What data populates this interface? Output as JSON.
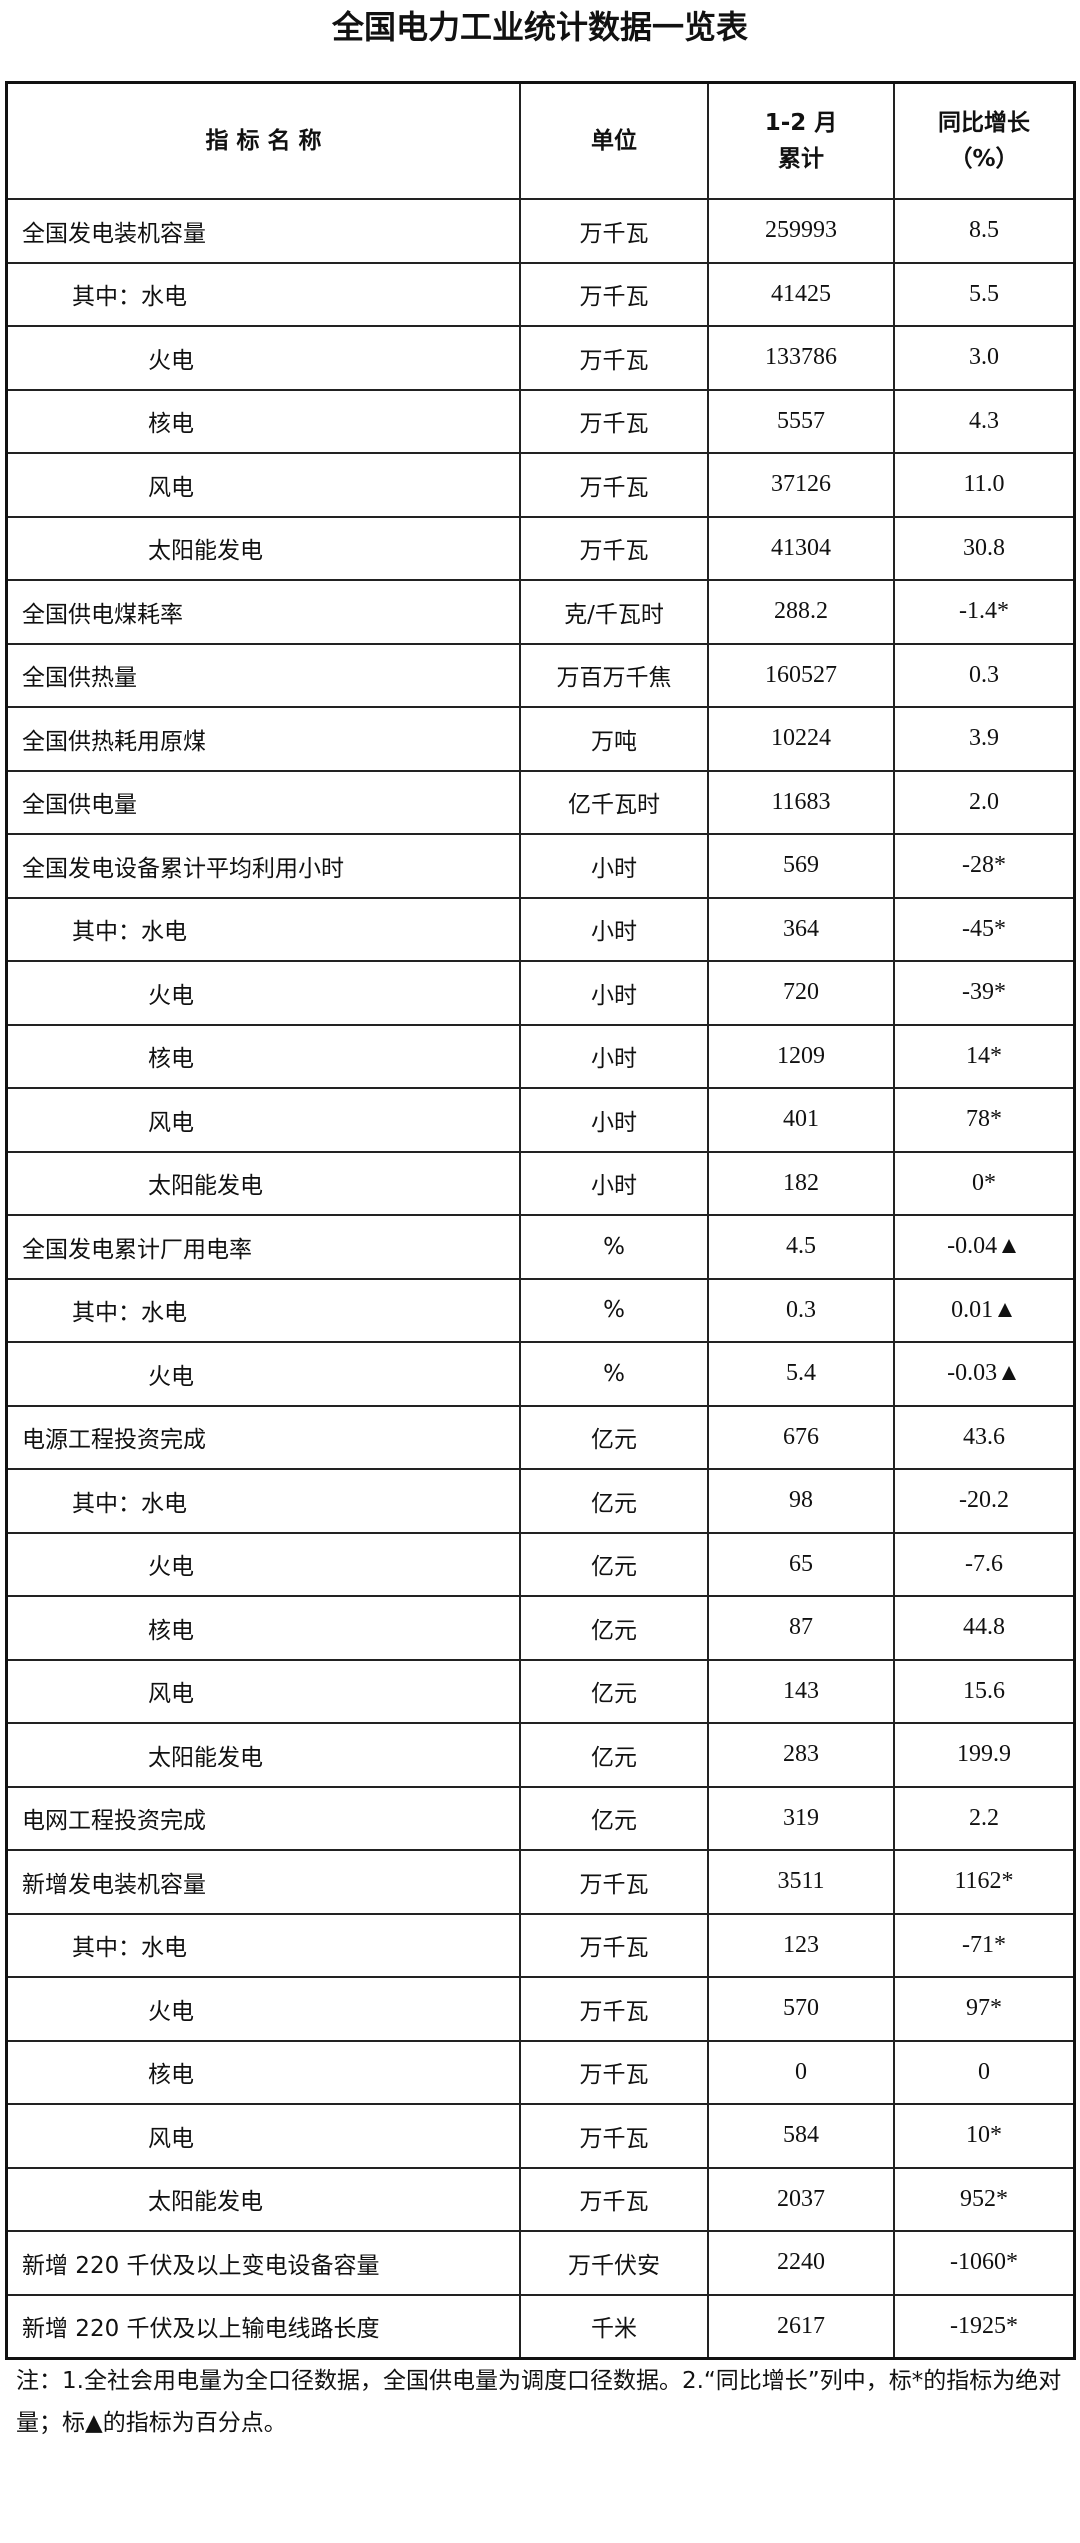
{
  "title": "全国电力工业统计数据一览表",
  "headers": {
    "name": "指 标 名 称",
    "unit": "单位",
    "value_line1": "1-2 月",
    "value_line2": "累计",
    "growth_line1": "同比增长",
    "growth_line2": "（%）"
  },
  "rows": [
    {
      "name": "全国发电装机容量",
      "level": 0,
      "unit": "万千瓦",
      "value": "259993",
      "growth": "8.5"
    },
    {
      "name": "其中：水电",
      "level": 1,
      "unit": "万千瓦",
      "value": "41425",
      "growth": "5.5"
    },
    {
      "name": "火电",
      "level": 2,
      "unit": "万千瓦",
      "value": "133786",
      "growth": "3.0"
    },
    {
      "name": "核电",
      "level": 2,
      "unit": "万千瓦",
      "value": "5557",
      "growth": "4.3"
    },
    {
      "name": "风电",
      "level": 2,
      "unit": "万千瓦",
      "value": "37126",
      "growth": "11.0"
    },
    {
      "name": "太阳能发电",
      "level": 2,
      "unit": "万千瓦",
      "value": "41304",
      "growth": "30.8"
    },
    {
      "name": "全国供电煤耗率",
      "level": 0,
      "unit": "克/千瓦时",
      "value": "288.2",
      "growth": "-1.4*"
    },
    {
      "name": "全国供热量",
      "level": 0,
      "unit": "万百万千焦",
      "value": "160527",
      "growth": "0.3"
    },
    {
      "name": "全国供热耗用原煤",
      "level": 0,
      "unit": "万吨",
      "value": "10224",
      "growth": "3.9"
    },
    {
      "name": "全国供电量",
      "level": 0,
      "unit": "亿千瓦时",
      "value": "11683",
      "growth": "2.0"
    },
    {
      "name": "全国发电设备累计平均利用小时",
      "level": 0,
      "unit": "小时",
      "value": "569",
      "growth": "-28*"
    },
    {
      "name": "其中：水电",
      "level": 1,
      "unit": "小时",
      "value": "364",
      "growth": "-45*"
    },
    {
      "name": "火电",
      "level": 2,
      "unit": "小时",
      "value": "720",
      "growth": "-39*"
    },
    {
      "name": "核电",
      "level": 2,
      "unit": "小时",
      "value": "1209",
      "growth": "14*"
    },
    {
      "name": "风电",
      "level": 2,
      "unit": "小时",
      "value": "401",
      "growth": "78*"
    },
    {
      "name": "太阳能发电",
      "level": 2,
      "unit": "小时",
      "value": "182",
      "growth": "0*"
    },
    {
      "name": "全国发电累计厂用电率",
      "level": 0,
      "unit": "%",
      "value": "4.5",
      "growth": "-0.04▲"
    },
    {
      "name": "其中：水电",
      "level": 1,
      "unit": "%",
      "value": "0.3",
      "growth": "0.01▲"
    },
    {
      "name": "火电",
      "level": 2,
      "unit": "%",
      "value": "5.4",
      "growth": "-0.03▲"
    },
    {
      "name": "电源工程投资完成",
      "level": 0,
      "unit": "亿元",
      "value": "676",
      "growth": "43.6"
    },
    {
      "name": "其中：水电",
      "level": 1,
      "unit": "亿元",
      "value": "98",
      "growth": "-20.2"
    },
    {
      "name": "火电",
      "level": 2,
      "unit": "亿元",
      "value": "65",
      "growth": "-7.6"
    },
    {
      "name": "核电",
      "level": 2,
      "unit": "亿元",
      "value": "87",
      "growth": "44.8"
    },
    {
      "name": "风电",
      "level": 2,
      "unit": "亿元",
      "value": "143",
      "growth": "15.6"
    },
    {
      "name": "太阳能发电",
      "level": 2,
      "unit": "亿元",
      "value": "283",
      "growth": "199.9"
    },
    {
      "name": "电网工程投资完成",
      "level": 0,
      "unit": "亿元",
      "value": "319",
      "growth": "2.2"
    },
    {
      "name": "新增发电装机容量",
      "level": 0,
      "unit": "万千瓦",
      "value": "3511",
      "growth": "1162*"
    },
    {
      "name": "其中：水电",
      "level": 1,
      "unit": "万千瓦",
      "value": "123",
      "growth": "-71*"
    },
    {
      "name": "火电",
      "level": 2,
      "unit": "万千瓦",
      "value": "570",
      "growth": "97*"
    },
    {
      "name": "核电",
      "level": 2,
      "unit": "万千瓦",
      "value": "0",
      "growth": "0"
    },
    {
      "name": "风电",
      "level": 2,
      "unit": "万千瓦",
      "value": "584",
      "growth": "10*"
    },
    {
      "name": "太阳能发电",
      "level": 2,
      "unit": "万千瓦",
      "value": "2037",
      "growth": "952*"
    },
    {
      "name": "新增 220 千伏及以上变电设备容量",
      "level": 0,
      "unit": "万千伏安",
      "value": "2240",
      "growth": "-1060*"
    },
    {
      "name": "新增 220 千伏及以上输电线路长度",
      "level": 0,
      "unit": "千米",
      "value": "2617",
      "growth": "-1925*"
    }
  ],
  "note": "注：1.全社会用电量为全口径数据，全国供电量为调度口径数据。2.“同比增长”列中，标*的指标为绝对量；标▲的指标为百分点。"
}
